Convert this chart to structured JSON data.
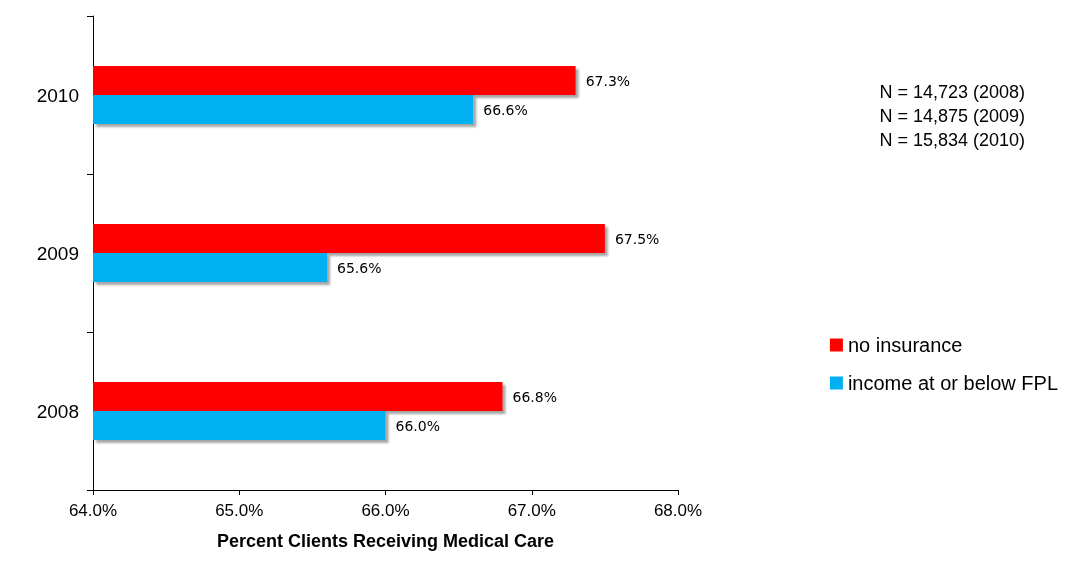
{
  "chart_data": {
    "type": "bar",
    "orientation": "horizontal",
    "xlabel": "Percent Clients Receiving Medical Care",
    "categories": [
      "2010",
      "2009",
      "2008"
    ],
    "series": [
      {
        "name": "no insurance",
        "color": "#ff0000",
        "values": [
          67.3,
          67.5,
          66.8
        ],
        "value_labels": [
          "67.3%",
          "67.5%",
          "66.8%"
        ]
      },
      {
        "name": "income at or below FPL",
        "color": "#00b0f0",
        "values": [
          66.6,
          65.6,
          66.0
        ],
        "value_labels": [
          "66.6%",
          "65.6%",
          "66.0%"
        ]
      }
    ],
    "xlim": [
      64,
      68
    ],
    "xticks": [
      {
        "value": 64,
        "label": "64.0%"
      },
      {
        "value": 65,
        "label": "65.0%"
      },
      {
        "value": 66,
        "label": "66.0%"
      },
      {
        "value": 67,
        "label": "67.0%"
      },
      {
        "value": 68,
        "label": "68.0%"
      }
    ],
    "annotations": [
      "N = 14,723 (2008)",
      "N = 14,875 (2009)",
      "N = 15,834 (2010)"
    ],
    "legend": "right",
    "grid": false
  }
}
